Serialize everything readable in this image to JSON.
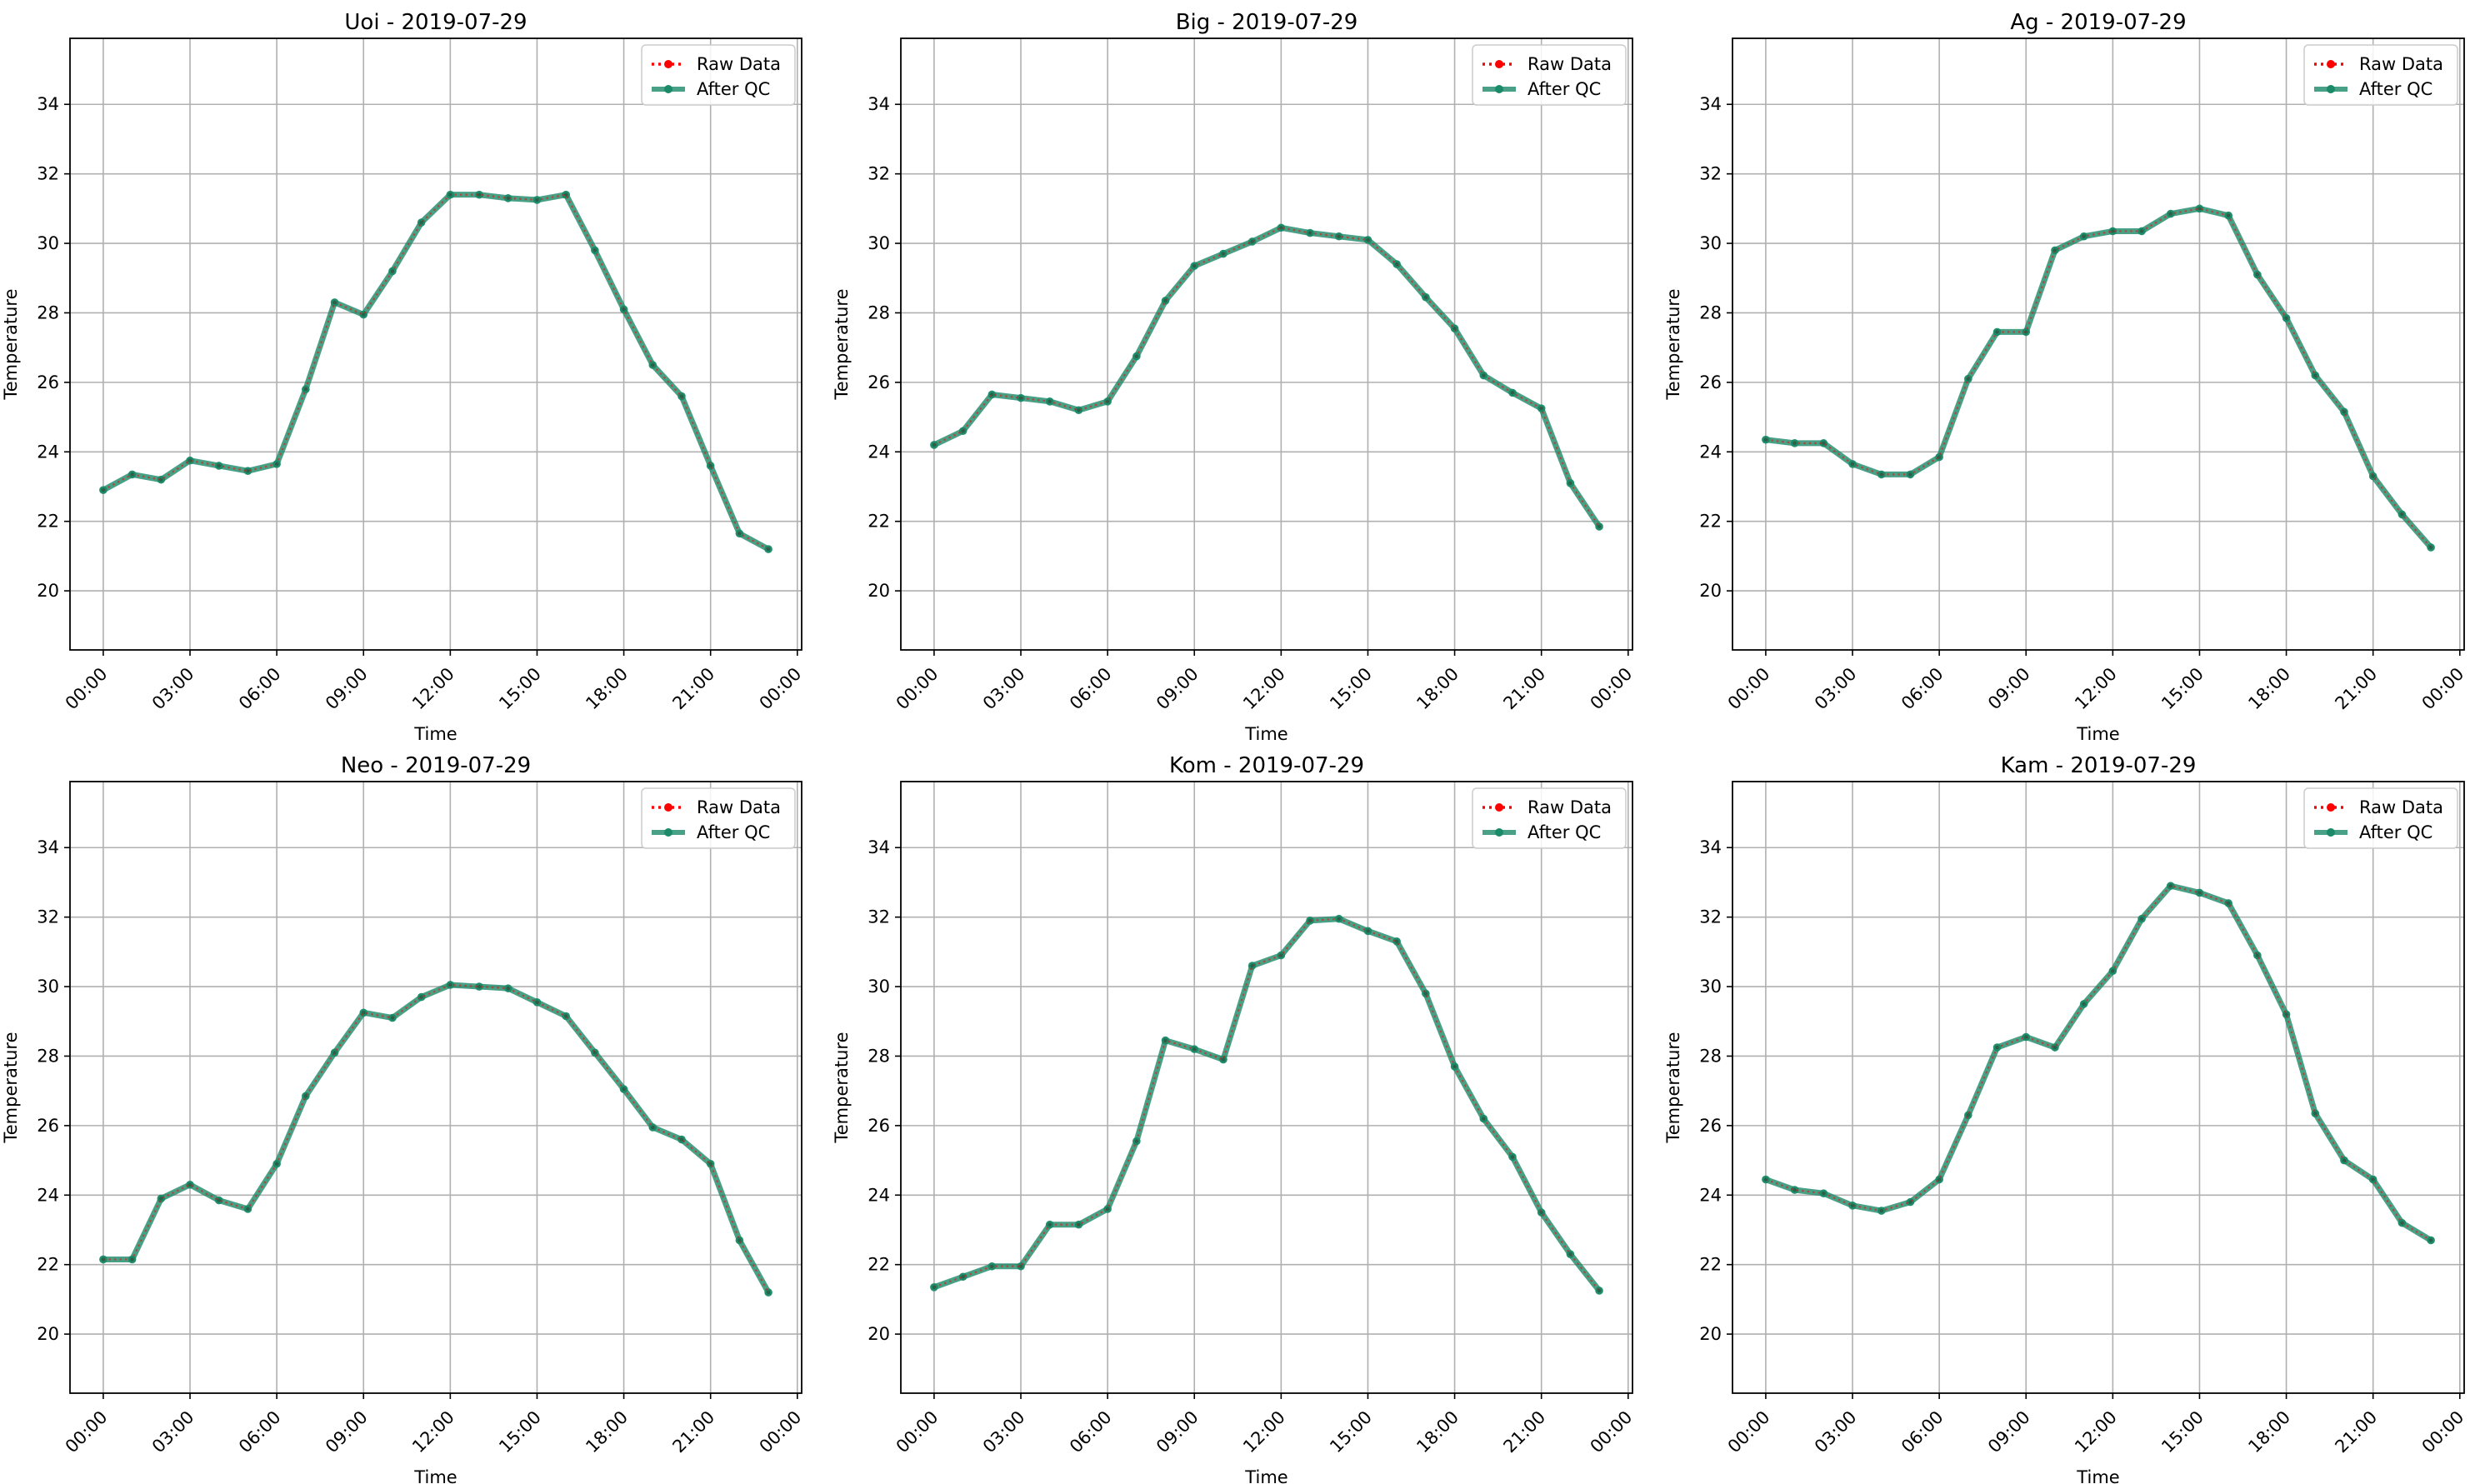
{
  "chart_data": [
    {
      "type": "line",
      "title": "Uoi - 2019-07-29",
      "xlabel": "Time",
      "ylabel": "Temperature",
      "x": [
        "00:00",
        "01:00",
        "02:00",
        "03:00",
        "04:00",
        "05:00",
        "06:00",
        "07:00",
        "08:00",
        "09:00",
        "10:00",
        "11:00",
        "12:00",
        "13:00",
        "14:00",
        "15:00",
        "16:00",
        "17:00",
        "18:00",
        "19:00",
        "20:00",
        "21:00",
        "22:00",
        "23:00"
      ],
      "series": [
        {
          "name": "Raw Data",
          "values": [
            22.9,
            23.35,
            23.2,
            23.75,
            23.6,
            23.45,
            23.65,
            25.8,
            28.3,
            27.95,
            29.2,
            30.6,
            31.4,
            31.4,
            31.3,
            31.25,
            31.4,
            29.8,
            28.1,
            26.5,
            25.6,
            23.6,
            21.65,
            21.2
          ]
        },
        {
          "name": "After QC",
          "values": [
            22.9,
            23.35,
            23.2,
            23.75,
            23.6,
            23.45,
            23.65,
            25.8,
            28.3,
            27.95,
            29.2,
            30.6,
            31.4,
            31.4,
            31.3,
            31.25,
            31.4,
            29.8,
            28.1,
            26.5,
            25.6,
            23.6,
            21.65,
            21.2
          ]
        }
      ]
    },
    {
      "type": "line",
      "title": "Big - 2019-07-29",
      "xlabel": "Time",
      "ylabel": "Temperature",
      "x": [
        "00:00",
        "01:00",
        "02:00",
        "03:00",
        "04:00",
        "05:00",
        "06:00",
        "07:00",
        "08:00",
        "09:00",
        "10:00",
        "11:00",
        "12:00",
        "13:00",
        "14:00",
        "15:00",
        "16:00",
        "17:00",
        "18:00",
        "19:00",
        "20:00",
        "21:00",
        "22:00",
        "23:00"
      ],
      "series": [
        {
          "name": "Raw Data",
          "values": [
            24.2,
            24.6,
            25.65,
            25.55,
            25.45,
            25.2,
            25.45,
            26.75,
            28.35,
            29.35,
            29.7,
            30.05,
            30.45,
            30.3,
            30.2,
            30.1,
            29.4,
            28.45,
            27.55,
            26.2,
            25.7,
            25.25,
            23.1,
            21.85
          ]
        },
        {
          "name": "After QC",
          "values": [
            24.2,
            24.6,
            25.65,
            25.55,
            25.45,
            25.2,
            25.45,
            26.75,
            28.35,
            29.35,
            29.7,
            30.05,
            30.45,
            30.3,
            30.2,
            30.1,
            29.4,
            28.45,
            27.55,
            26.2,
            25.7,
            25.25,
            23.1,
            21.85
          ]
        }
      ]
    },
    {
      "type": "line",
      "title": "Ag - 2019-07-29",
      "xlabel": "Time",
      "ylabel": "Temperature",
      "x": [
        "00:00",
        "01:00",
        "02:00",
        "03:00",
        "04:00",
        "05:00",
        "06:00",
        "07:00",
        "08:00",
        "09:00",
        "10:00",
        "11:00",
        "12:00",
        "13:00",
        "14:00",
        "15:00",
        "16:00",
        "17:00",
        "18:00",
        "19:00",
        "20:00",
        "21:00",
        "22:00",
        "23:00"
      ],
      "series": [
        {
          "name": "Raw Data",
          "values": [
            24.35,
            24.25,
            24.25,
            23.65,
            23.35,
            23.35,
            23.85,
            26.1,
            27.45,
            27.45,
            29.8,
            30.2,
            30.35,
            30.35,
            30.85,
            31.0,
            30.8,
            29.1,
            27.85,
            26.2,
            25.15,
            23.3,
            22.2,
            21.25
          ]
        },
        {
          "name": "After QC",
          "values": [
            24.35,
            24.25,
            24.25,
            23.65,
            23.35,
            23.35,
            23.85,
            26.1,
            27.45,
            27.45,
            29.8,
            30.2,
            30.35,
            30.35,
            30.85,
            31.0,
            30.8,
            29.1,
            27.85,
            26.2,
            25.15,
            23.3,
            22.2,
            21.25
          ]
        }
      ]
    },
    {
      "type": "line",
      "title": "Neo - 2019-07-29",
      "xlabel": "Time",
      "ylabel": "Temperature",
      "x": [
        "00:00",
        "01:00",
        "02:00",
        "03:00",
        "04:00",
        "05:00",
        "06:00",
        "07:00",
        "08:00",
        "09:00",
        "10:00",
        "11:00",
        "12:00",
        "13:00",
        "14:00",
        "15:00",
        "16:00",
        "17:00",
        "18:00",
        "19:00",
        "20:00",
        "21:00",
        "22:00",
        "23:00"
      ],
      "series": [
        {
          "name": "Raw Data",
          "values": [
            22.15,
            22.15,
            23.9,
            24.3,
            23.85,
            23.6,
            24.9,
            26.85,
            28.1,
            29.25,
            29.1,
            29.7,
            30.05,
            30.0,
            29.95,
            29.55,
            29.15,
            28.1,
            27.05,
            25.95,
            25.6,
            24.9,
            22.7,
            21.2
          ]
        },
        {
          "name": "After QC",
          "values": [
            22.15,
            22.15,
            23.9,
            24.3,
            23.85,
            23.6,
            24.9,
            26.85,
            28.1,
            29.25,
            29.1,
            29.7,
            30.05,
            30.0,
            29.95,
            29.55,
            29.15,
            28.1,
            27.05,
            25.95,
            25.6,
            24.9,
            22.7,
            21.2
          ]
        }
      ]
    },
    {
      "type": "line",
      "title": "Kom - 2019-07-29",
      "xlabel": "Time",
      "ylabel": "Temperature",
      "x": [
        "00:00",
        "01:00",
        "02:00",
        "03:00",
        "04:00",
        "05:00",
        "06:00",
        "07:00",
        "08:00",
        "09:00",
        "10:00",
        "11:00",
        "12:00",
        "13:00",
        "14:00",
        "15:00",
        "16:00",
        "17:00",
        "18:00",
        "19:00",
        "20:00",
        "21:00",
        "22:00",
        "23:00"
      ],
      "series": [
        {
          "name": "Raw Data",
          "values": [
            21.35,
            21.65,
            21.95,
            21.95,
            23.15,
            23.15,
            23.6,
            25.55,
            28.45,
            28.2,
            27.9,
            30.6,
            30.9,
            31.9,
            31.95,
            31.6,
            31.3,
            29.8,
            27.7,
            26.2,
            25.1,
            23.5,
            22.3,
            21.25
          ]
        },
        {
          "name": "After QC",
          "values": [
            21.35,
            21.65,
            21.95,
            21.95,
            23.15,
            23.15,
            23.6,
            25.55,
            28.45,
            28.2,
            27.9,
            30.6,
            30.9,
            31.9,
            31.95,
            31.6,
            31.3,
            29.8,
            27.7,
            26.2,
            25.1,
            23.5,
            22.3,
            21.25
          ]
        }
      ]
    },
    {
      "type": "line",
      "title": "Kam - 2019-07-29",
      "xlabel": "Time",
      "ylabel": "Temperature",
      "x": [
        "00:00",
        "01:00",
        "02:00",
        "03:00",
        "04:00",
        "05:00",
        "06:00",
        "07:00",
        "08:00",
        "09:00",
        "10:00",
        "11:00",
        "12:00",
        "13:00",
        "14:00",
        "15:00",
        "16:00",
        "17:00",
        "18:00",
        "19:00",
        "20:00",
        "21:00",
        "22:00",
        "23:00"
      ],
      "series": [
        {
          "name": "Raw Data",
          "values": [
            24.45,
            24.15,
            24.05,
            23.7,
            23.55,
            23.8,
            24.45,
            26.3,
            28.25,
            28.55,
            28.25,
            29.5,
            30.45,
            31.95,
            32.9,
            32.7,
            32.4,
            30.9,
            29.2,
            26.35,
            25.0,
            24.45,
            23.2,
            22.7
          ]
        },
        {
          "name": "After QC",
          "values": [
            24.45,
            24.15,
            24.05,
            23.7,
            23.55,
            23.8,
            24.45,
            26.3,
            28.25,
            28.55,
            28.25,
            29.5,
            30.45,
            31.95,
            32.9,
            32.7,
            32.4,
            30.9,
            29.2,
            26.35,
            25.0,
            24.45,
            23.2,
            22.7
          ]
        }
      ]
    }
  ],
  "axes": {
    "xtick_labels": [
      "00:00",
      "03:00",
      "06:00",
      "09:00",
      "12:00",
      "15:00",
      "18:00",
      "21:00",
      "00:00"
    ],
    "xtick_hours": [
      0,
      3,
      6,
      9,
      12,
      15,
      18,
      21,
      24
    ],
    "xlim_hours": [
      -1.15,
      24.15
    ],
    "ytick_labels": [
      "20",
      "22",
      "24",
      "26",
      "28",
      "30",
      "32",
      "34"
    ],
    "ytick_values": [
      20,
      22,
      24,
      26,
      28,
      30,
      32,
      34
    ],
    "ylim": [
      18.3,
      35.9
    ],
    "grid": true,
    "legend_location": "upper right",
    "grid_color": "#b0b0b0",
    "tick_rotation_deg": 45
  },
  "series_styles": {
    "raw": {
      "color": "#ff0000",
      "linestyle": "dotted"
    },
    "qc": {
      "color": "#1a8a68",
      "opacity": 0.8
    }
  }
}
